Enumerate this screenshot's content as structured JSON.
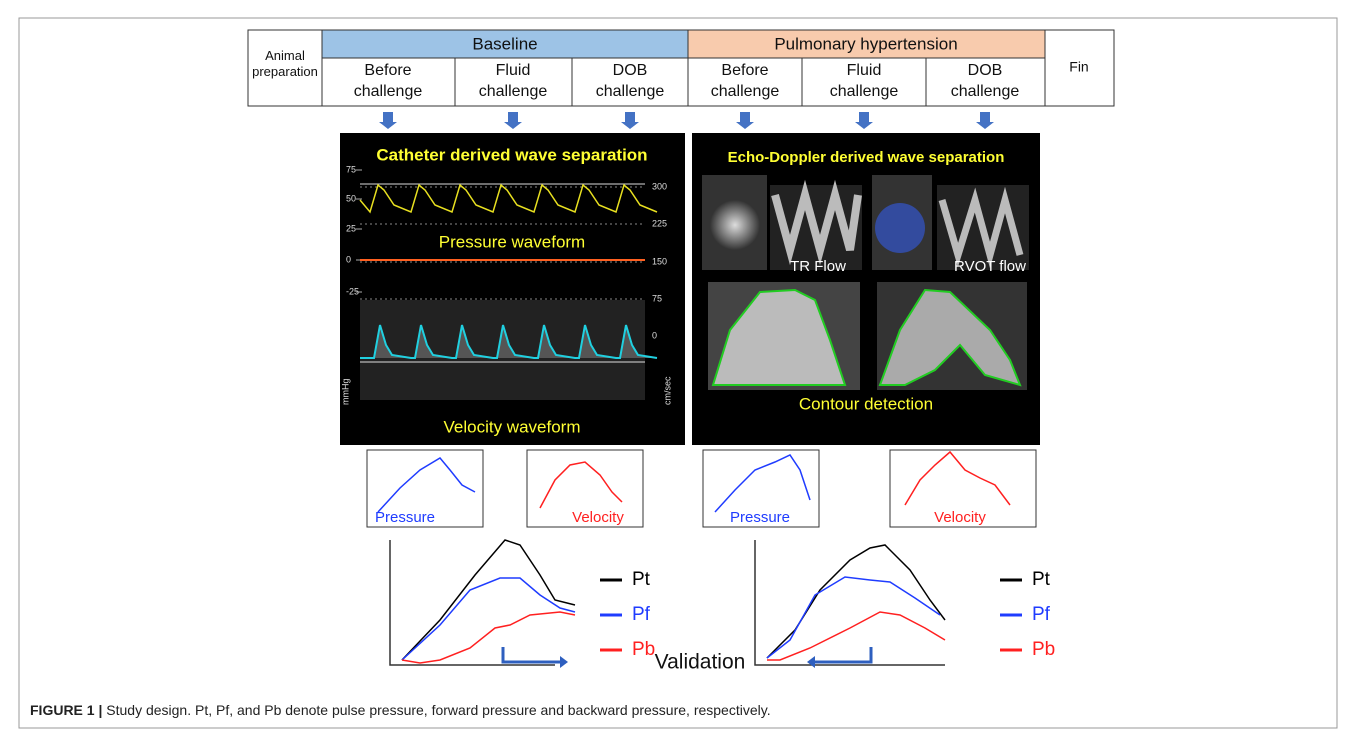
{
  "header": {
    "first_column": "Animal preparation",
    "last_column": "Fin",
    "phases": [
      {
        "title": "Baseline",
        "steps": [
          "Before challenge",
          "Fluid challenge",
          "DOB challenge"
        ]
      },
      {
        "title": "Pulmonary hypertension",
        "steps": [
          "Before challenge",
          "Fluid challenge",
          "DOB challenge"
        ]
      }
    ]
  },
  "catheter_panel": {
    "title": "Catheter derived wave separation",
    "left_axis": [
      75,
      50,
      25,
      0,
      -25
    ],
    "right_axis": [
      300,
      225,
      150,
      75,
      0
    ],
    "left_unit": "mmHg",
    "right_unit": "cm/sec",
    "pressure_label": "Pressure waveform",
    "velocity_label": "Velocity waveform"
  },
  "echo_panel": {
    "title": "Echo-Doppler derived wave separation",
    "tr_label": "TR Flow",
    "rvot_label": "RVOT flow",
    "contour_label": "Contour detection"
  },
  "boxes": [
    "Pressure",
    "Velocity",
    "Pressure",
    "Velocity"
  ],
  "legends": [
    [
      "Pt",
      "Pf",
      "Pb"
    ],
    [
      "Pt",
      "Pf",
      "Pb"
    ]
  ],
  "validation": "Validation",
  "caption": {
    "label": "FIGURE 1 |",
    "text": "Study design. Pt, Pf, and Pb denote pulse pressure, forward pressure and backward pressure, respectively."
  }
}
